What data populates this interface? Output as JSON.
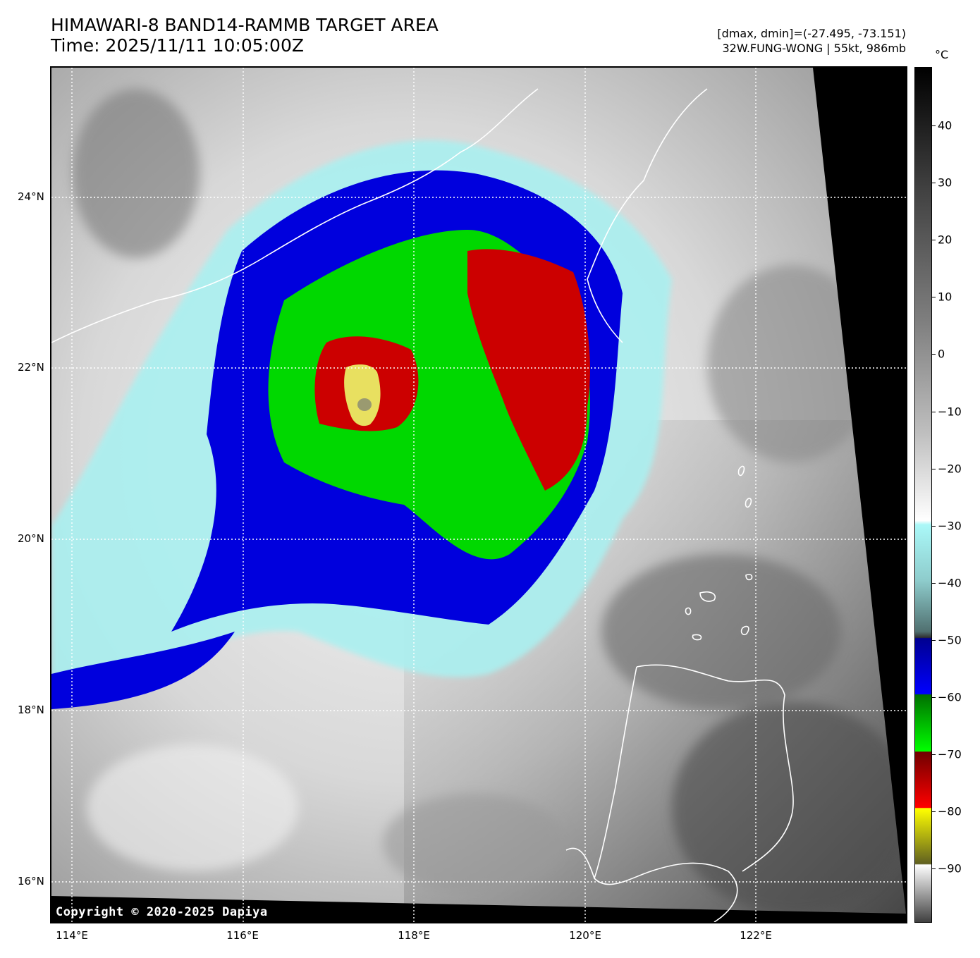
{
  "title": {
    "line1": "HIMAWARI-8 BAND14-RAMMB TARGET AREA",
    "line2": "Time: 2025/11/11 10:05:00Z"
  },
  "meta": {
    "range": "[dmax, dmin]=(-27.495, -73.151)",
    "storm": "32W.FUNG-WONG | 55kt, 986mb"
  },
  "copyright": "Copyright © 2020-2025 Dapiya",
  "lat_labels": [
    "24°N",
    "22°N",
    "20°N",
    "18°N",
    "16°N"
  ],
  "lon_labels": [
    "114°E",
    "116°E",
    "118°E",
    "120°E",
    "122°E"
  ],
  "colorbar": {
    "unit": "°C",
    "ticks": [
      "40",
      "30",
      "20",
      "10",
      "0",
      "−10",
      "−20",
      "−30",
      "−40",
      "−50",
      "−60",
      "−70",
      "−80",
      "−90"
    ],
    "bands": [
      {
        "name": "warm-grayscale",
        "colors": [
          "#000000",
          "#404040",
          "#808080",
          "#c0c0c0",
          "#ffffff"
        ]
      },
      {
        "name": "cyan",
        "colors": [
          "#aaf8f8",
          "#8ecccc",
          "#507070",
          "#303030"
        ]
      },
      {
        "name": "blue",
        "colors": [
          "#000090",
          "#0000ff"
        ]
      },
      {
        "name": "green",
        "colors": [
          "#007000",
          "#00ff00"
        ]
      },
      {
        "name": "red",
        "colors": [
          "#700000",
          "#ff0000"
        ]
      },
      {
        "name": "yellow",
        "colors": [
          "#ffff00",
          "#606020"
        ]
      },
      {
        "name": "cold-grayscale",
        "colors": [
          "#ffffff",
          "#404040"
        ]
      }
    ]
  },
  "map": {
    "storm_colors": {
      "blue": "#0000dd",
      "green": "#00d800",
      "red": "#cc0000",
      "yellow": "#e8e060",
      "cyan": "#aaf0f0"
    }
  }
}
